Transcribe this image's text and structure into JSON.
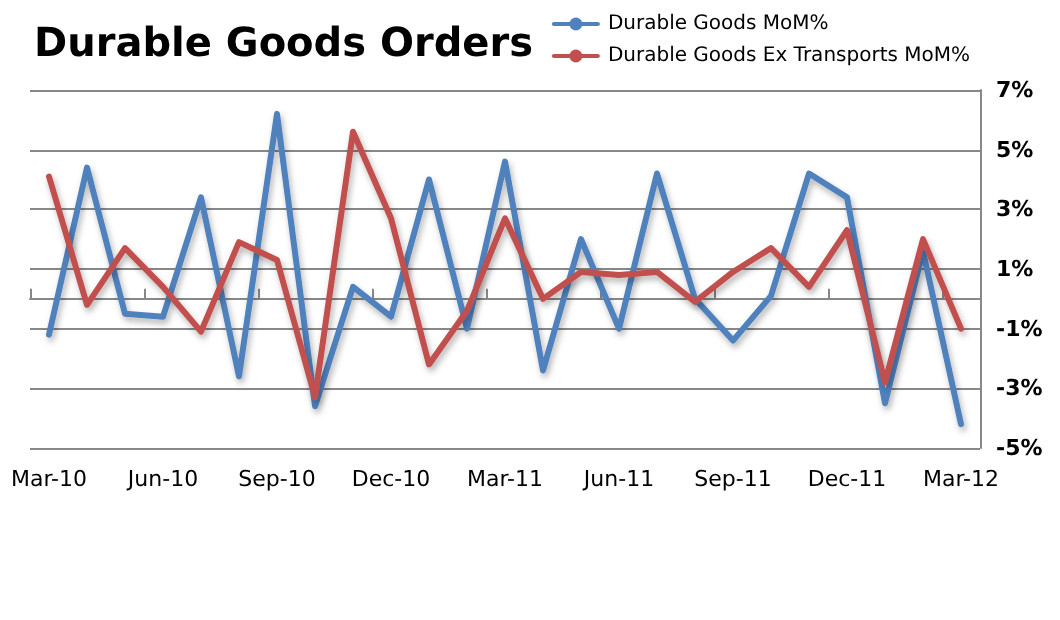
{
  "chart_data": {
    "type": "line",
    "title": "Durable Goods Orders",
    "categories": [
      "Mar-10",
      null,
      null,
      "Jun-10",
      null,
      null,
      "Sep-10",
      null,
      null,
      "Dec-10",
      null,
      null,
      "Mar-11",
      null,
      null,
      "Jun-11",
      null,
      null,
      "Sep-11",
      null,
      null,
      "Dec-11",
      null,
      null,
      "Mar-12"
    ],
    "series": [
      {
        "name": "Durable Goods MoM%",
        "color": "#4f81bd",
        "values": [
          -1.2,
          4.4,
          -0.5,
          -0.6,
          3.4,
          -2.6,
          6.2,
          -3.6,
          0.4,
          -0.6,
          4.0,
          -1.0,
          4.6,
          -2.4,
          2.0,
          -1.0,
          4.2,
          0.0,
          -1.4,
          0.1,
          4.2,
          3.4,
          -3.5,
          1.6,
          -4.2
        ]
      },
      {
        "name": "Durable Goods Ex Transports MoM%",
        "color": "#c0504d",
        "values": [
          4.1,
          -0.2,
          1.7,
          0.4,
          -1.1,
          1.9,
          1.3,
          -3.3,
          5.6,
          2.7,
          -2.2,
          -0.4,
          2.7,
          0.0,
          0.9,
          0.8,
          0.9,
          -0.1,
          0.9,
          1.7,
          0.4,
          2.3,
          -2.8,
          2.0,
          -1.0
        ]
      }
    ],
    "ylim": [
      -5,
      7
    ],
    "yticks": [
      {
        "value": -5,
        "label": "-5%"
      },
      {
        "value": -3,
        "label": "-3%"
      },
      {
        "value": -1,
        "label": "-1%"
      },
      {
        "value": 1,
        "label": "1%"
      },
      {
        "value": 3,
        "label": "3%"
      },
      {
        "value": 5,
        "label": "5%"
      },
      {
        "value": 7,
        "label": "7%"
      }
    ],
    "grid": "y",
    "legend": "top right",
    "marker": "none",
    "line_style": "solid"
  }
}
